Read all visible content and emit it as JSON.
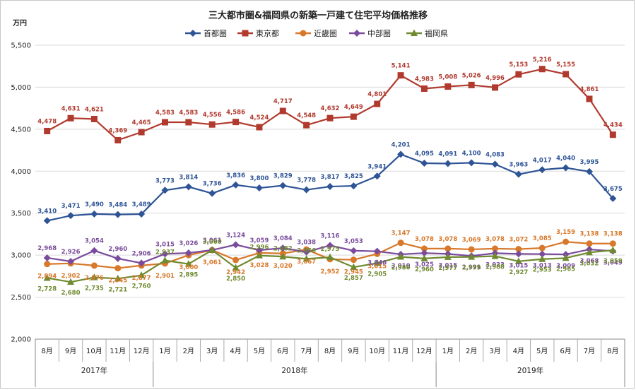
{
  "chart_data": {
    "type": "line",
    "title": "三大都市圏&福岡県の新築一戸建て住宅平均価格推移",
    "ylabel": "万円",
    "ylim": [
      2000,
      5500
    ],
    "yticks": [
      "2,000",
      "2,500",
      "3,000",
      "3,500",
      "4,000",
      "4,500",
      "5,000",
      "5,500"
    ],
    "categories": [
      "8月",
      "9月",
      "10月",
      "11月",
      "12月",
      "1月",
      "2月",
      "3月",
      "4月",
      "5月",
      "6月",
      "7月",
      "8月",
      "9月",
      "10月",
      "11月",
      "12月",
      "1月",
      "2月",
      "3月",
      "4月",
      "5月",
      "6月",
      "7月",
      "8月"
    ],
    "years": [
      {
        "label": "2017年",
        "start": 0,
        "end": 4
      },
      {
        "label": "2018年",
        "start": 5,
        "end": 16
      },
      {
        "label": "2019年",
        "start": 17,
        "end": 24
      }
    ],
    "grid": true,
    "legend_position": "top",
    "series": [
      {
        "name": "首都圏",
        "color": "#2e5496",
        "marker": "diamond",
        "values": [
          3410,
          3471,
          3490,
          3484,
          3489,
          3773,
          3814,
          3736,
          3836,
          3800,
          3829,
          3778,
          3817,
          3825,
          3941,
          4201,
          4095,
          4091,
          4100,
          4083,
          3963,
          4017,
          4040,
          3995,
          3675
        ],
        "labels": [
          "3,410",
          "3,471",
          "3,490",
          "3,484",
          "3,489",
          "3,773",
          "3,814",
          "3,736",
          "3,836",
          "3,800",
          "3,829",
          "3,778",
          "3,817",
          "3,825",
          "3,941",
          "4,201",
          "4,095",
          "4,091",
          "4,100",
          "4,083",
          "3,963",
          "4,017",
          "4,040",
          "3,995",
          "3,675"
        ]
      },
      {
        "name": "東京都",
        "color": "#b03a2e",
        "marker": "square",
        "values": [
          4478,
          4631,
          4621,
          4369,
          4465,
          4583,
          4583,
          4556,
          4586,
          4524,
          4717,
          4548,
          4632,
          4649,
          4801,
          5141,
          4983,
          5008,
          5026,
          4996,
          5153,
          5216,
          5155,
          4861,
          4434
        ],
        "labels": [
          "4,478",
          "4,631",
          "4,621",
          "4,369",
          "4,465",
          "4,583",
          "4,583",
          "4,556",
          "4,586",
          "4,524",
          "4,717",
          "4,548",
          "4,632",
          "4,649",
          "4,801",
          "5,141",
          "4,983",
          "5,008",
          "5,026",
          "4,996",
          "5,153",
          "5,216",
          "5,155",
          "4,861",
          "4,434"
        ]
      },
      {
        "name": "近畿圏",
        "color": "#d8782a",
        "marker": "circle",
        "values": [
          2894,
          2902,
          2876,
          2845,
          2877,
          2901,
          3000,
          3061,
          2942,
          3028,
          3020,
          3067,
          2952,
          2945,
          3015,
          3147,
          3078,
          3078,
          3069,
          3078,
          3072,
          3085,
          3159,
          3138,
          3138
        ],
        "labels": [
          "2,894",
          "2,902",
          "2,876",
          "2,845",
          "2,877",
          "2,901",
          "3,000",
          "3,061",
          "2,942",
          "3,028",
          "3,020",
          "3,067",
          "2,952",
          "2,945",
          "3,015",
          "3,147",
          "3,078",
          "3,078",
          "3,069",
          "3,078",
          "3,072",
          "3,085",
          "3,159",
          "3,138",
          "3,138"
        ]
      },
      {
        "name": "中部圏",
        "color": "#7a4b9c",
        "marker": "diamond",
        "values": [
          2968,
          2926,
          3054,
          2960,
          2906,
          3015,
          3026,
          3061,
          3124,
          3059,
          3084,
          3038,
          3116,
          3053,
          3046,
          3010,
          3025,
          3015,
          2991,
          3023,
          3015,
          3013,
          3009,
          3068,
          3049
        ],
        "labels": [
          "2,968",
          "2,926",
          "3,054",
          "2,960",
          "2,906",
          "3,015",
          "3,026",
          "3,061",
          "3,124",
          "3,059",
          "3,084",
          "3,038",
          "3,116",
          "3,053",
          "3,046",
          "3,010",
          "3,025",
          "3,015",
          "2,991",
          "3,023",
          "3,015",
          "3,013",
          "3,009",
          "3,068",
          "3,049"
        ]
      },
      {
        "name": "福岡県",
        "color": "#6f8a30",
        "marker": "triangle",
        "values": [
          2728,
          2680,
          2735,
          2721,
          2760,
          2937,
          2895,
          3060,
          2850,
          2996,
          2982,
          2956,
          2975,
          2857,
          2905,
          2980,
          2960,
          2977,
          2979,
          2988,
          2927,
          2953,
          2965,
          3032,
          3059
        ],
        "labels": [
          "2,728",
          "2,680",
          "2,735",
          "2,721",
          "2,760",
          "2,937",
          "2,895",
          "3,060",
          "2,850",
          "2,996",
          "2,982",
          "2,956",
          "2,975",
          "2,857",
          "2,905",
          "2,980",
          "2,960",
          "2,977",
          "2,979",
          "2,988",
          "2,927",
          "2,953",
          "2,965",
          "3,032",
          "3,059"
        ]
      }
    ]
  }
}
